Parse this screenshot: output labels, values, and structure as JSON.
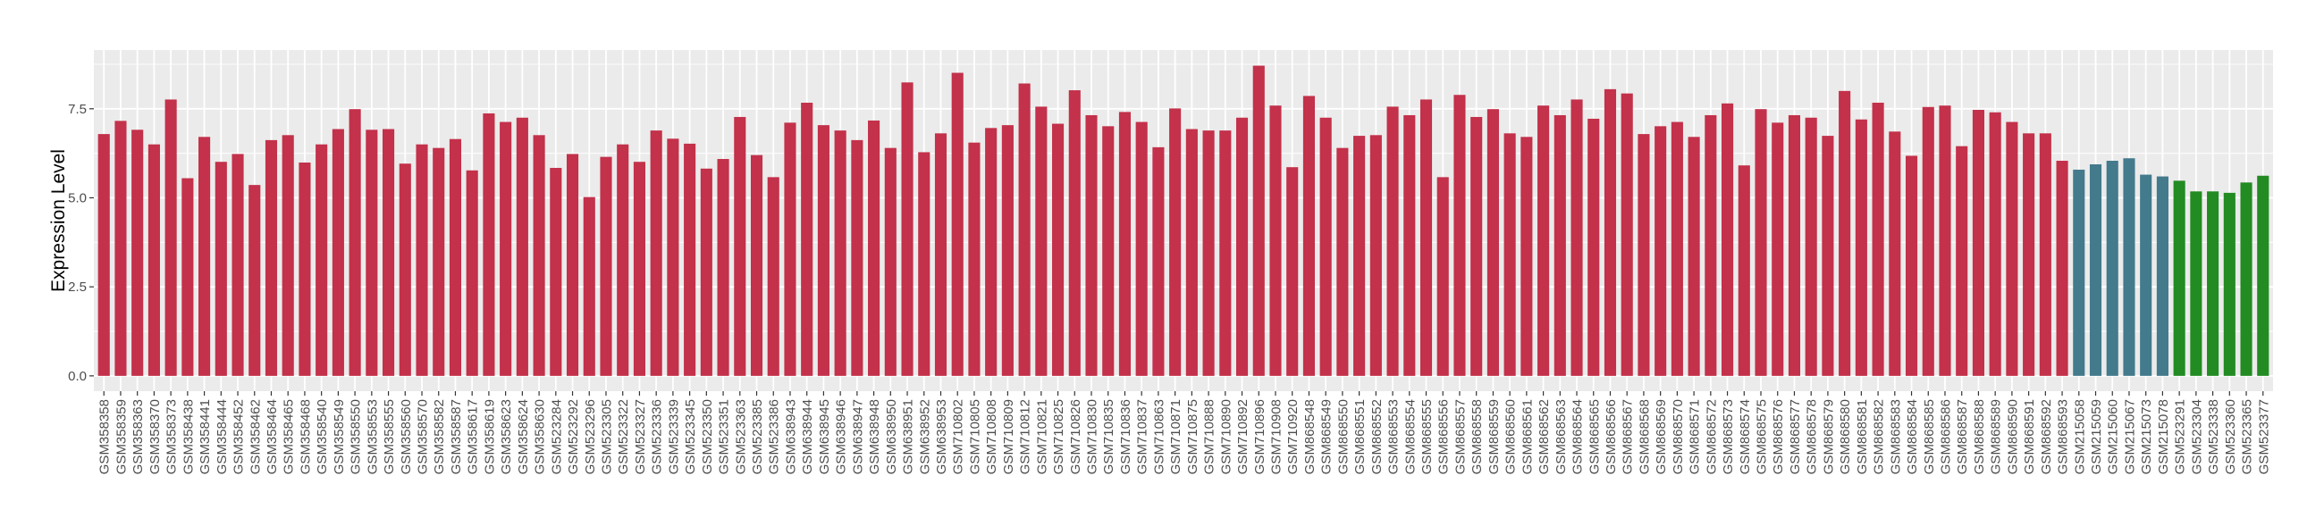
{
  "chart_data": {
    "type": "bar",
    "title": "",
    "xlabel": "",
    "ylabel": "Expression Level",
    "ylim": [
      -0.43,
      9.15
    ],
    "yticks": [
      "0.0",
      "2.5",
      "5.0",
      "7.5"
    ],
    "grid": true,
    "legend": "none",
    "colors": {
      "group1": "#C3314A",
      "group2": "#437A8C",
      "group3": "#228B22"
    },
    "categories": [
      "GSM358358",
      "GSM358359",
      "GSM358363",
      "GSM358370",
      "GSM358373",
      "GSM358438",
      "GSM358441",
      "GSM358444",
      "GSM358452",
      "GSM358462",
      "GSM358464",
      "GSM358465",
      "GSM358468",
      "GSM358540",
      "GSM358549",
      "GSM358550",
      "GSM358553",
      "GSM358555",
      "GSM358560",
      "GSM358570",
      "GSM358582",
      "GSM358587",
      "GSM358617",
      "GSM358619",
      "GSM358623",
      "GSM358624",
      "GSM358630",
      "GSM523284",
      "GSM523292",
      "GSM523296",
      "GSM523305",
      "GSM523322",
      "GSM523327",
      "GSM523336",
      "GSM523339",
      "GSM523345",
      "GSM523350",
      "GSM523351",
      "GSM523363",
      "GSM523385",
      "GSM523386",
      "GSM638943",
      "GSM638944",
      "GSM638945",
      "GSM638946",
      "GSM638947",
      "GSM638948",
      "GSM638950",
      "GSM638951",
      "GSM638952",
      "GSM638953",
      "GSM710802",
      "GSM710805",
      "GSM710808",
      "GSM710809",
      "GSM710812",
      "GSM710821",
      "GSM710825",
      "GSM710826",
      "GSM710830",
      "GSM710835",
      "GSM710836",
      "GSM710837",
      "GSM710863",
      "GSM710871",
      "GSM710875",
      "GSM710888",
      "GSM710890",
      "GSM710892",
      "GSM710896",
      "GSM710908",
      "GSM710920",
      "GSM868548",
      "GSM868549",
      "GSM868550",
      "GSM868551",
      "GSM868552",
      "GSM868553",
      "GSM868554",
      "GSM868555",
      "GSM868556",
      "GSM868557",
      "GSM868558",
      "GSM868559",
      "GSM868560",
      "GSM868561",
      "GSM868562",
      "GSM868563",
      "GSM868564",
      "GSM868565",
      "GSM868566",
      "GSM868567",
      "GSM868568",
      "GSM868569",
      "GSM868570",
      "GSM868571",
      "GSM868572",
      "GSM868573",
      "GSM868574",
      "GSM868575",
      "GSM868576",
      "GSM868577",
      "GSM868578",
      "GSM868579",
      "GSM868580",
      "GSM868581",
      "GSM868582",
      "GSM868583",
      "GSM868584",
      "GSM868585",
      "GSM868586",
      "GSM868587",
      "GSM868588",
      "GSM868589",
      "GSM868590",
      "GSM868591",
      "GSM868592",
      "GSM868593",
      "GSM215058",
      "GSM215059",
      "GSM215060",
      "GSM215067",
      "GSM215073",
      "GSM215078",
      "GSM523291",
      "GSM523304",
      "GSM523338",
      "GSM523360",
      "GSM523365",
      "GSM523377"
    ],
    "values": [
      6.79,
      7.16,
      6.91,
      6.5,
      7.76,
      5.55,
      6.71,
      6.01,
      6.23,
      5.36,
      6.62,
      6.76,
      5.99,
      6.5,
      6.93,
      7.49,
      6.91,
      6.93,
      5.96,
      6.5,
      6.4,
      6.65,
      5.77,
      7.37,
      7.13,
      7.25,
      6.76,
      5.84,
      6.23,
      5.02,
      6.15,
      6.5,
      6.01,
      6.89,
      6.66,
      6.52,
      5.82,
      6.09,
      7.27,
      6.2,
      5.58,
      7.11,
      7.67,
      7.04,
      6.89,
      6.62,
      7.17,
      6.4,
      8.24,
      6.28,
      6.81,
      8.51,
      6.55,
      6.96,
      7.04,
      8.21,
      7.56,
      7.08,
      8.02,
      7.32,
      7.01,
      7.41,
      7.13,
      6.42,
      7.51,
      6.93,
      6.89,
      6.89,
      7.25,
      8.71,
      7.59,
      5.86,
      7.86,
      7.25,
      6.4,
      6.74,
      6.76,
      7.56,
      7.32,
      7.76,
      5.58,
      7.89,
      7.27,
      7.49,
      6.81,
      6.71,
      7.59,
      7.32,
      7.76,
      7.22,
      8.05,
      7.93,
      6.79,
      7.01,
      7.13,
      6.71,
      7.32,
      7.65,
      5.91,
      7.49,
      7.11,
      7.32,
      7.25,
      6.74,
      8.0,
      7.2,
      7.67,
      6.86,
      6.18,
      7.55,
      7.59,
      6.45,
      7.47,
      7.4,
      7.13,
      6.81,
      6.81,
      6.04,
      5.79,
      5.94,
      6.04,
      6.11,
      5.65,
      5.6,
      5.48,
      5.18,
      5.18,
      5.14,
      5.43,
      5.62
    ],
    "group_counts": {
      "group1": 118,
      "group2": 6,
      "group3": 6
    }
  }
}
